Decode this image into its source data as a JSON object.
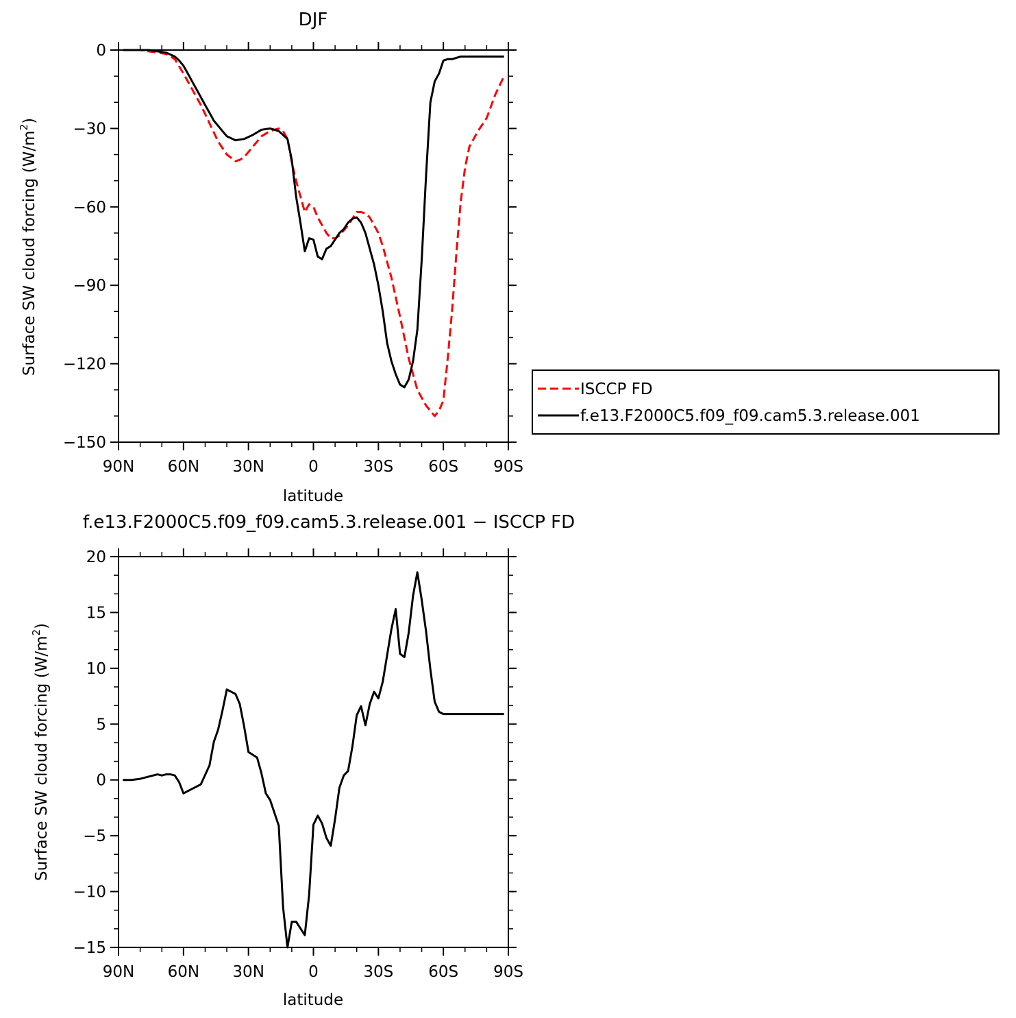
{
  "chart_data": [
    {
      "type": "line",
      "title": "DJF",
      "xlabel": "latitude",
      "ylabel": "Surface SW cloud forcing (W/m",
      "ylabel_sup": "2",
      "ylabel_close": ")",
      "xlim": [
        -90,
        90
      ],
      "ylim": [
        -150,
        0
      ],
      "x_ticks": [
        -90,
        -60,
        -30,
        0,
        30,
        60,
        90
      ],
      "x_tick_labels": [
        "90N",
        "60N",
        "30N",
        "0",
        "30S",
        "60S",
        "90S"
      ],
      "y_ticks": [
        0,
        -30,
        -60,
        -90,
        -120,
        -150
      ],
      "y_tick_labels": [
        "0",
        "−30",
        "−60",
        "−90",
        "−120",
        "−150"
      ],
      "legend": "right",
      "series": [
        {
          "name": "ISCCP FD",
          "color": "#ff0000",
          "dash": "dashed",
          "x": [
            -88,
            -84,
            -80,
            -76,
            -72,
            -68,
            -64,
            -60,
            -56,
            -52,
            -48,
            -44,
            -40,
            -36,
            -34,
            -32,
            -28,
            -24,
            -20,
            -16,
            -14,
            -12,
            -10,
            -8,
            -4,
            -2,
            0,
            2,
            4,
            6,
            8,
            10,
            12,
            14,
            16,
            20,
            22,
            24,
            26,
            28,
            30,
            32,
            36,
            40,
            44,
            48,
            52,
            56,
            58,
            60,
            62,
            64,
            66,
            68,
            70,
            72,
            76,
            80,
            84,
            88
          ],
          "y": [
            0,
            0,
            0,
            -0.5,
            -1,
            -1.5,
            -3.5,
            -9,
            -15,
            -21,
            -28,
            -35,
            -40,
            -42.5,
            -42,
            -41,
            -37,
            -33,
            -31,
            -30,
            -31,
            -34,
            -43,
            -50,
            -62,
            -59,
            -60,
            -64,
            -67,
            -70,
            -72,
            -72,
            -71,
            -69,
            -67,
            -62,
            -62,
            -62.5,
            -64,
            -67,
            -70,
            -75,
            -87,
            -102,
            -118,
            -130,
            -136,
            -140,
            -138,
            -134,
            -118,
            -100,
            -78,
            -58,
            -45,
            -37,
            -31,
            -26,
            -17,
            -10
          ]
        },
        {
          "name": "f.e13.F2000C5.f09_f09.cam5.3.release.001",
          "color": "#000000",
          "dash": "solid",
          "x": [
            -88,
            -84,
            -80,
            -76,
            -72,
            -68,
            -64,
            -62,
            -60,
            -58,
            -56,
            -54,
            -52,
            -50,
            -48,
            -46,
            -44,
            -42,
            -40,
            -36,
            -32,
            -28,
            -24,
            -20,
            -16,
            -12,
            -10,
            -8,
            -6,
            -4,
            -2,
            0,
            2,
            4,
            6,
            8,
            10,
            12,
            14,
            16,
            18,
            20,
            22,
            24,
            26,
            28,
            30,
            32,
            34,
            36,
            38,
            40,
            42,
            44,
            46,
            48,
            50,
            52,
            54,
            56,
            58,
            60,
            62,
            64,
            66,
            68,
            70,
            72,
            74,
            76,
            78,
            80,
            82,
            84,
            86,
            88
          ],
          "y": [
            0,
            0,
            0,
            0,
            -0.5,
            -1,
            -2.5,
            -4,
            -6,
            -9,
            -12,
            -15,
            -18,
            -21,
            -24,
            -27,
            -29,
            -31,
            -33,
            -34.5,
            -34,
            -32.5,
            -30.5,
            -30,
            -31,
            -34,
            -42,
            -56,
            -66,
            -77,
            -72,
            -72.5,
            -79,
            -80,
            -76,
            -75,
            -72.5,
            -70,
            -68.5,
            -66,
            -64.5,
            -64,
            -66,
            -70,
            -76,
            -82,
            -90,
            -100,
            -112,
            -119,
            -124,
            -128,
            -129,
            -126,
            -119,
            -107,
            -80,
            -48,
            -20,
            -12,
            -9,
            -4,
            -3.5,
            -3.5,
            -3,
            -2.5,
            -2.5,
            -2.5,
            -2.5,
            -2.5,
            -2.5,
            -2.5,
            -2.5,
            -2.5,
            -2.5,
            -2.5
          ]
        }
      ]
    },
    {
      "type": "line",
      "title": "f.e13.F2000C5.f09_f09.cam5.3.release.001 − ISCCP FD",
      "xlabel": "latitude",
      "ylabel": "Surface SW cloud forcing (W/m",
      "ylabel_sup": "2",
      "ylabel_close": ")",
      "xlim": [
        -90,
        90
      ],
      "ylim": [
        -15,
        20
      ],
      "x_ticks": [
        -90,
        -60,
        -30,
        0,
        30,
        60,
        90
      ],
      "x_tick_labels": [
        "90N",
        "60N",
        "30N",
        "0",
        "30S",
        "60S",
        "90S"
      ],
      "y_ticks": [
        20,
        15,
        10,
        5,
        0,
        -5,
        -10,
        -15
      ],
      "y_tick_labels": [
        "20",
        "15",
        "10",
        "5",
        "0",
        "−5",
        "−10",
        "−15"
      ],
      "series": [
        {
          "color": "#000000",
          "dash": "solid",
          "x": [
            -88,
            -84,
            -80,
            -76,
            -72,
            -70,
            -68,
            -66,
            -64,
            -62,
            -60,
            -56,
            -54,
            -52,
            -48,
            -46,
            -44,
            -42,
            -40,
            -36,
            -34,
            -32,
            -30,
            -26,
            -24,
            -22,
            -20,
            -16,
            -14,
            -12,
            -10,
            -8,
            -4,
            -2,
            0,
            2,
            4,
            6,
            8,
            10,
            12,
            14,
            16,
            18,
            20,
            22,
            24,
            26,
            28,
            30,
            32,
            36,
            38,
            40,
            42,
            44,
            46,
            48,
            50,
            52,
            54,
            56,
            58,
            60,
            62,
            64,
            66,
            68,
            70,
            72,
            74,
            76,
            78,
            80,
            82,
            84,
            86,
            88
          ],
          "y": [
            0,
            0,
            0.1,
            0.3,
            0.5,
            0.4,
            0.5,
            0.5,
            0.4,
            -0.2,
            -1.2,
            -0.8,
            -0.6,
            -0.4,
            1.3,
            3.4,
            4.5,
            6.2,
            8.1,
            7.7,
            6.8,
            4.8,
            2.5,
            2.0,
            0.6,
            -1.2,
            -1.8,
            -4.1,
            -11.4,
            -15.0,
            -12.7,
            -12.7,
            -13.9,
            -10.3,
            -4.0,
            -3.2,
            -3.9,
            -5.2,
            -5.9,
            -3.5,
            -0.7,
            0.4,
            0.8,
            3.0,
            5.8,
            6.6,
            4.9,
            6.8,
            7.9,
            7.3,
            8.8,
            13.5,
            15.3,
            11.3,
            11.0,
            13.2,
            16.5,
            18.6,
            16.1,
            13.3,
            9.9,
            7.0,
            6.1,
            5.9,
            5.9,
            5.9,
            5.9,
            5.9,
            5.9,
            5.9,
            5.9,
            5.9,
            5.9,
            5.9,
            5.9,
            5.9,
            5.9,
            5.9
          ]
        }
      ]
    }
  ]
}
